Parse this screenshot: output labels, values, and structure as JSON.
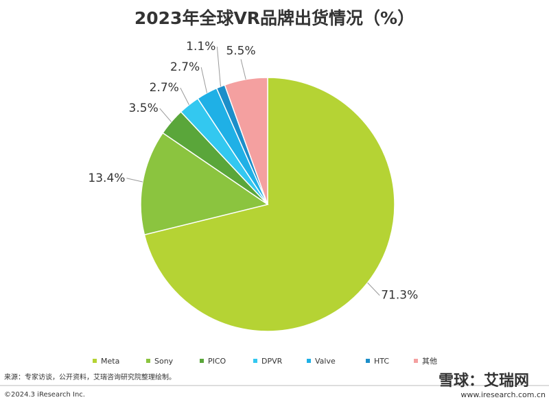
{
  "chart_data": {
    "type": "pie",
    "title": "2023年全球VR品牌出货情况（%）",
    "categories": [
      "Meta",
      "Sony",
      "PICO",
      "DPVR",
      "Valve",
      "HTC",
      "其他"
    ],
    "values": [
      71.3,
      13.4,
      3.5,
      2.7,
      2.7,
      1.1,
      5.5
    ],
    "value_labels": [
      "71.3%",
      "13.4%",
      "3.5%",
      "2.7%",
      "2.7%",
      "1.1%",
      "5.5%"
    ],
    "colors": [
      "#b5d334",
      "#8bc43f",
      "#5aa63a",
      "#33c8f0",
      "#1fb0e6",
      "#1c8ec9",
      "#f4a0a0"
    ],
    "legend": "bottom"
  },
  "footer": {
    "source": "来源：专家访谈，公开资料，艾瑞咨询研究院整理绘制。",
    "copyright": "©2024.3 iResearch Inc.",
    "watermark": "雪球：艾瑞网",
    "website": "www.iresearch.com.cn"
  }
}
